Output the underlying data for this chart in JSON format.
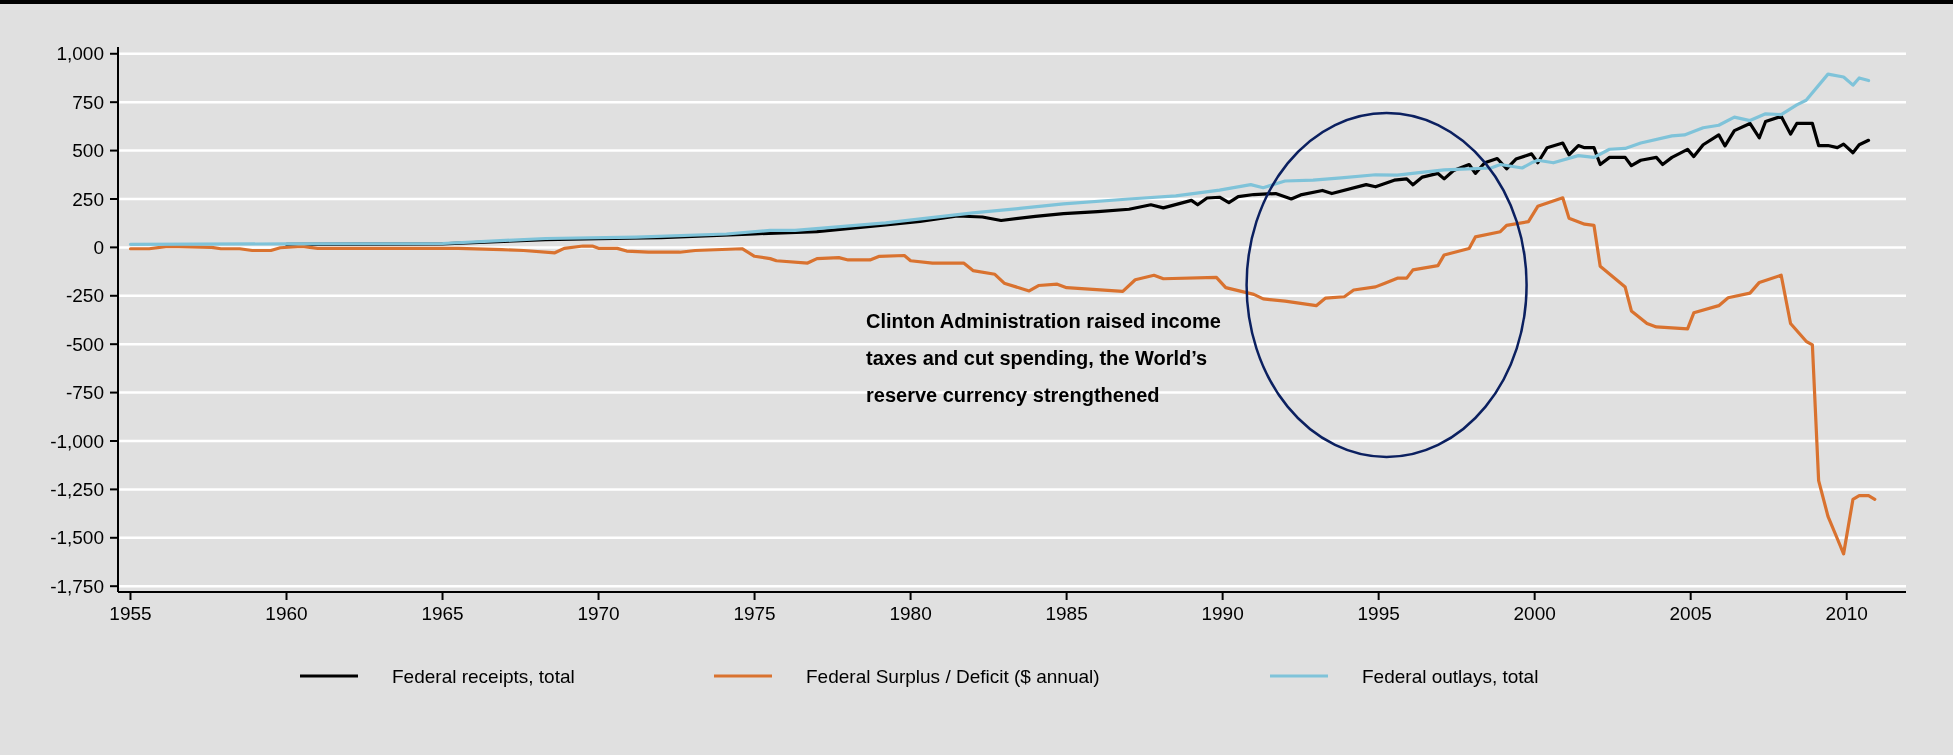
{
  "chart_data": {
    "type": "line",
    "annotations": [
      "Clinton Administration raised income taxes and cut spending, the World’s reserve currency strengthened"
    ],
    "xlim": [
      1954.6,
      2011.9
    ],
    "xticks": [
      1955,
      1960,
      1965,
      1970,
      1975,
      1980,
      1985,
      1990,
      1995,
      2000,
      2005,
      2010
    ],
    "ylim": [
      -1780,
      1035
    ],
    "yticks": [
      {
        "value": 1000,
        "label": "1,000"
      },
      750,
      500,
      250,
      0,
      -250,
      -500,
      -750,
      {
        "value": -1000,
        "label": "-1,000"
      },
      {
        "value": -1250,
        "label": "-1,250"
      },
      {
        "value": -1500,
        "label": "-1,500"
      },
      {
        "value": -1750,
        "label": "-1,750"
      }
    ],
    "grid": "y",
    "legend": "bottom",
    "line_style": "solid",
    "marker": "none",
    "series": [
      {
        "name": "Federal receipts, total",
        "color": "#000000",
        "x": [
          1960,
          1965,
          1968.3,
          1970,
          1972,
          1974,
          1975,
          1977,
          1979.2,
          1980.3,
          1981.5,
          1982.3,
          1982.9,
          1984,
          1984.9,
          1986,
          1987,
          1987.7,
          1988.1,
          1989,
          1989.2,
          1989.5,
          1989.9,
          1990.2,
          1990.5,
          1991,
          1991.7,
          1992.2,
          1992.5,
          1993.2,
          1993.5,
          1994.6,
          1994.9,
          1995.5,
          1995.9,
          1996.1,
          1996.4,
          1996.9,
          1997.1,
          1997.4,
          1997.9,
          1998.1,
          1998.4,
          1998.8,
          1999.1,
          1999.4,
          1999.9,
          2000.1,
          2000.4,
          2000.9,
          2001.1,
          2001.4,
          2001.6,
          2001.9,
          2002.1,
          2002.4,
          2002.9,
          2003.1,
          2003.4,
          2003.9,
          2004.1,
          2004.4,
          2004.9,
          2005.1,
          2005.4,
          2005.9,
          2006.1,
          2006.4,
          2006.9,
          2007.2,
          2007.4,
          2007.9,
          2008.2,
          2008.4,
          2008.9,
          2009.1,
          2009.4,
          2009.7,
          2009.9,
          2010.2,
          2010.4,
          2010.7
        ],
        "values": [
          16,
          18,
          40,
          45,
          50,
          63,
          70,
          81,
          116,
          134,
          162,
          157,
          139,
          160,
          174,
          185,
          197,
          220,
          204,
          243,
          220,
          255,
          259,
          231,
          262,
          273,
          278,
          250,
          271,
          294,
          278,
          324,
          313,
          347,
          354,
          323,
          363,
          382,
          354,
          397,
          428,
          382,
          437,
          459,
          406,
          456,
          483,
          437,
          515,
          539,
          478,
          526,
          515,
          515,
          428,
          465,
          465,
          422,
          450,
          465,
          428,
          465,
          506,
          469,
          530,
          581,
          524,
          603,
          640,
          566,
          650,
          677,
          585,
          640,
          640,
          526,
          526,
          515,
          533,
          489,
          530,
          553
        ]
      },
      {
        "name": "Federal Surplus / Deficit ($ annual)",
        "color": "#d9722f",
        "x": [
          1955,
          1955.6,
          1956.2,
          1957.6,
          1957.9,
          1958.5,
          1958.9,
          1959.5,
          1959.8,
          1960.5,
          1961,
          1965.5,
          1966.9,
          1967.6,
          1968.6,
          1968.9,
          1969.5,
          1969.8,
          1970,
          1970.6,
          1970.9,
          1971.6,
          1972.6,
          1973.1,
          1974.6,
          1975,
          1975.5,
          1975.7,
          1976.7,
          1977,
          1977.7,
          1978,
          1978.7,
          1979,
          1979.8,
          1980,
          1980.7,
          1981.7,
          1982,
          1982.7,
          1983,
          1983.8,
          1984.1,
          1984.7,
          1985,
          1986.8,
          1987.2,
          1987.8,
          1988.1,
          1989.8,
          1990.1,
          1991,
          1991.3,
          1992,
          1993,
          1993.3,
          1993.9,
          1994.2,
          1994.9,
          1995.2,
          1995.6,
          1995.9,
          1996.1,
          1996.9,
          1997.1,
          1997.9,
          1998.1,
          1998.9,
          1999.1,
          1999.8,
          2000.1,
          2000.9,
          2001.1,
          2001.6,
          2001.9,
          2002.1,
          2002.9,
          2003.1,
          2003.6,
          2003.9,
          2004.9,
          2005.1,
          2005.9,
          2006.2,
          2006.9,
          2007.2,
          2007.9,
          2008.2,
          2008.7,
          2008.9,
          2009.1,
          2009.4,
          2009.7,
          2009.9,
          2010.2,
          2010.4,
          2010.7,
          2010.9
        ],
        "values": [
          -7,
          -7,
          5,
          0,
          -7,
          -7,
          -16,
          -16,
          -2,
          5,
          -5,
          -5,
          -12,
          -16,
          -28,
          -5,
          7,
          7,
          -5,
          -5,
          -19,
          -25,
          -25,
          -16,
          -7,
          -46,
          -58,
          -69,
          -81,
          -58,
          -53,
          -65,
          -65,
          -46,
          -42,
          -69,
          -81,
          -81,
          -120,
          -139,
          -185,
          -225,
          -197,
          -190,
          -208,
          -227,
          -167,
          -144,
          -162,
          -155,
          -208,
          -243,
          -266,
          -278,
          -301,
          -262,
          -255,
          -220,
          -204,
          -185,
          -159,
          -159,
          -116,
          -94,
          -39,
          -6,
          54,
          81,
          114,
          133,
          212,
          256,
          151,
          120,
          114,
          -98,
          -205,
          -328,
          -393,
          -411,
          -421,
          -338,
          -301,
          -260,
          -236,
          -181,
          -144,
          -393,
          -485,
          -504,
          -1205,
          -1389,
          -1505,
          -1583,
          -1301,
          -1282,
          -1282,
          -1301
        ]
      },
      {
        "name": "Federal outlays, total",
        "color": "#7fc3d9",
        "x": [
          1955,
          1960,
          1965,
          1968.3,
          1971.2,
          1974.1,
          1975.5,
          1976.3,
          1979.2,
          1982,
          1983.5,
          1984.9,
          1987,
          1988.5,
          1989.9,
          1990.9,
          1991.3,
          1992,
          1992.9,
          1993.8,
          1994.9,
          1995.6,
          1996.3,
          1997.1,
          1998.6,
          1998.9,
          1999.6,
          1999.9,
          2000.1,
          2000.6,
          2001.4,
          2001.9,
          2002.4,
          2002.9,
          2003.4,
          2004.4,
          2004.8,
          2005.4,
          2005.9,
          2006.4,
          2006.9,
          2007.4,
          2007.9,
          2008.4,
          2008.7,
          2009.4,
          2009.9,
          2010.2,
          2010.4,
          2010.7
        ],
        "values": [
          16,
          18,
          20,
          46,
          53,
          69,
          88,
          88,
          127,
          178,
          201,
          225,
          250,
          266,
          296,
          324,
          308,
          343,
          347,
          359,
          375,
          373,
          386,
          400,
          410,
          428,
          410,
          437,
          450,
          437,
          474,
          465,
          507,
          511,
          539,
          576,
          581,
          618,
          631,
          673,
          655,
          690,
          686,
          736,
          760,
          895,
          880,
          838,
          875,
          862
        ]
      }
    ]
  }
}
